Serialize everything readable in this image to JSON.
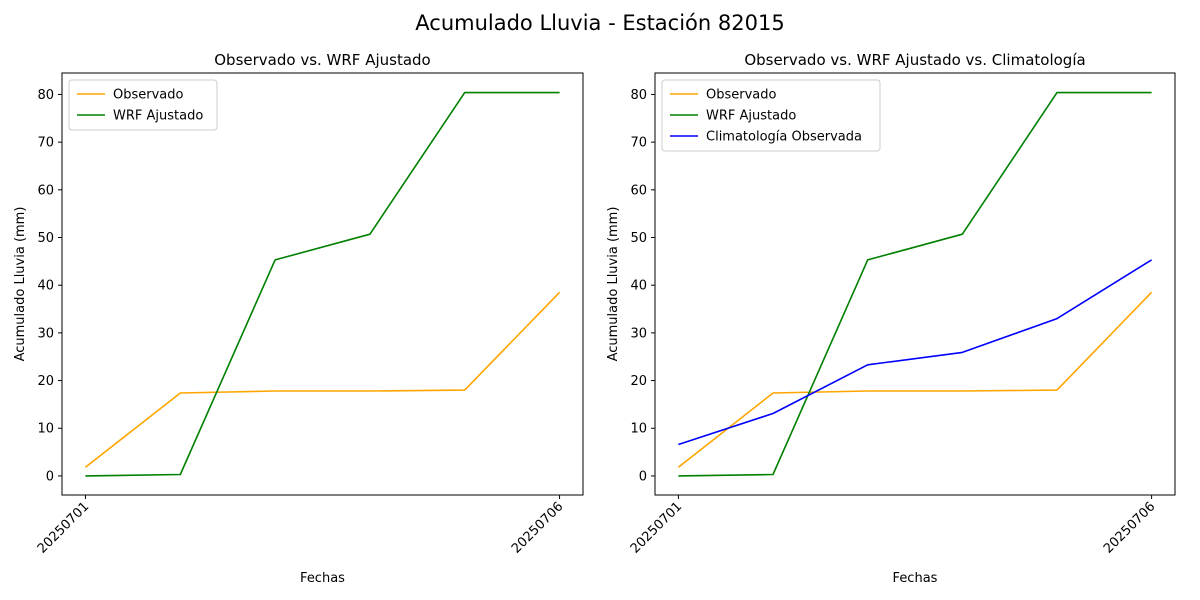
{
  "suptitle": "Acumulado Lluvia - Estación 82015",
  "colors": {
    "observado": "#ffa500",
    "wrf": "#008000",
    "climatologia": "#0000ff"
  },
  "chart_data": [
    {
      "type": "line",
      "title": "Observado vs. WRF Ajustado",
      "xlabel": "Fechas",
      "ylabel": "Acumulado Lluvia (mm)",
      "x": [
        "20250701",
        "20250702",
        "20250703",
        "20250704",
        "20250705",
        "20250706"
      ],
      "xtick_labels": [
        "20250701",
        "20250706"
      ],
      "ylim": [
        -4,
        84.5
      ],
      "yticks": [
        0,
        10,
        20,
        30,
        40,
        50,
        60,
        70,
        80
      ],
      "grid": false,
      "legend": "upper left",
      "series": [
        {
          "name": "Observado",
          "color": "#ffa500",
          "values": [
            1.8,
            17.4,
            17.8,
            17.8,
            18.0,
            38.5
          ]
        },
        {
          "name": "WRF Ajustado",
          "color": "#008000",
          "values": [
            0.0,
            0.3,
            45.3,
            50.7,
            80.4,
            80.4
          ]
        }
      ]
    },
    {
      "type": "line",
      "title": "Observado vs. WRF Ajustado vs. Climatología",
      "xlabel": "Fechas",
      "ylabel": "Acumulado Lluvia (mm)",
      "x": [
        "20250701",
        "20250702",
        "20250703",
        "20250704",
        "20250705",
        "20250706"
      ],
      "xtick_labels": [
        "20250701",
        "20250706"
      ],
      "ylim": [
        -4,
        84.5
      ],
      "yticks": [
        0,
        10,
        20,
        30,
        40,
        50,
        60,
        70,
        80
      ],
      "grid": false,
      "legend": "upper left",
      "series": [
        {
          "name": "Observado",
          "color": "#ffa500",
          "values": [
            1.8,
            17.4,
            17.8,
            17.8,
            18.0,
            38.5
          ]
        },
        {
          "name": "WRF Ajustado",
          "color": "#008000",
          "values": [
            0.0,
            0.3,
            45.3,
            50.7,
            80.4,
            80.4
          ]
        },
        {
          "name": "Climatología Observada",
          "color": "#0000ff",
          "values": [
            6.6,
            13.1,
            23.3,
            25.9,
            33.0,
            45.3
          ]
        }
      ]
    }
  ]
}
